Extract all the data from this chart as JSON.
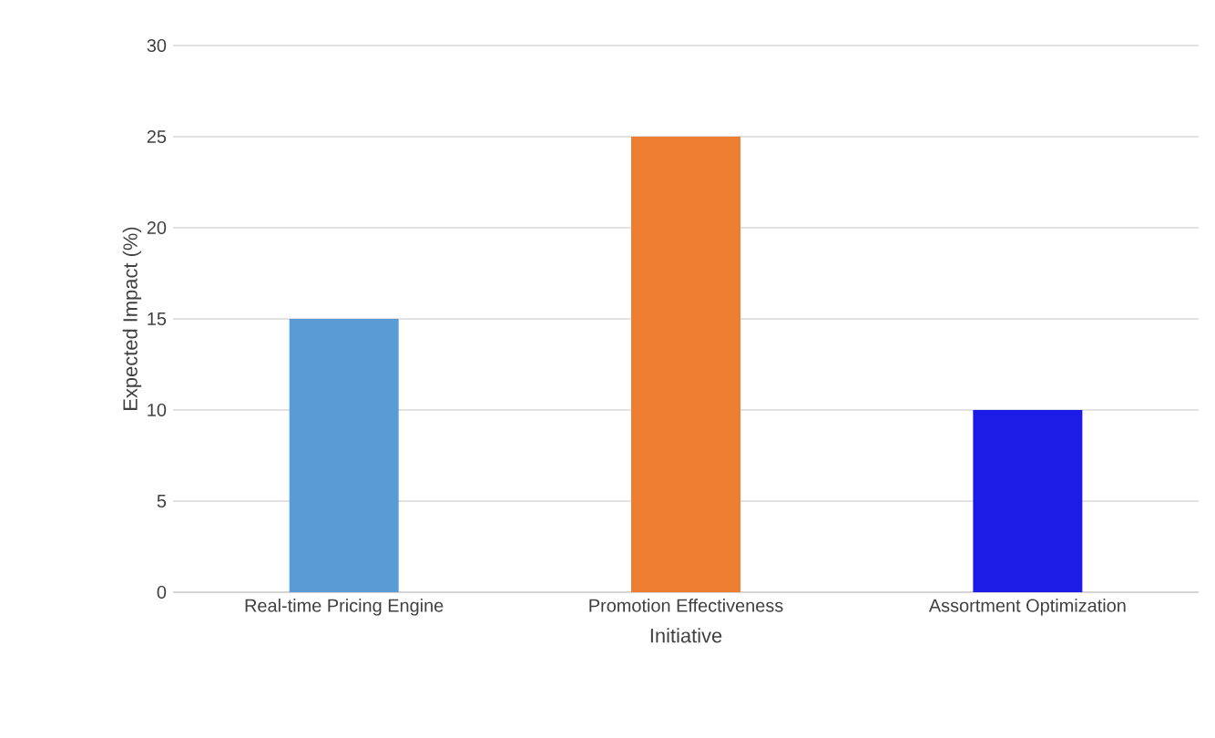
{
  "chart_data": {
    "type": "bar",
    "xlabel": "Initiative",
    "ylabel": "Expected Impact (%)",
    "categories": [
      "Real-time Pricing Engine",
      "Promotion Effectiveness",
      "Assortment Optimization"
    ],
    "values": [
      15,
      25,
      10
    ],
    "colors": [
      "#5b9bd5",
      "#ed7d31",
      "#1c1ce6"
    ],
    "ylim": [
      0,
      30
    ],
    "yticks": [
      0,
      5,
      10,
      15,
      20,
      25,
      30
    ],
    "grid": "y"
  }
}
